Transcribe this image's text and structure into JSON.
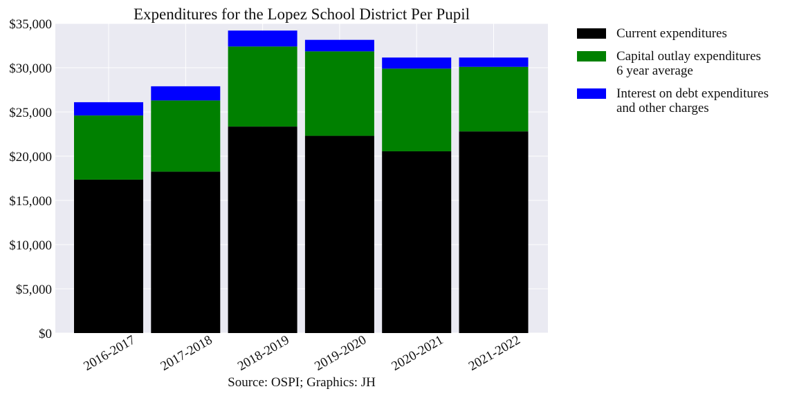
{
  "chart_data": {
    "type": "bar",
    "stacked": true,
    "title": "Expenditures for the Lopez School District Per Pupil",
    "xlabel": "",
    "ylabel": "",
    "categories": [
      "2016-2017",
      "2017-2018",
      "2018-2019",
      "2019-2020",
      "2020-2021",
      "2021-2022"
    ],
    "series": [
      {
        "name": "Current expenditures",
        "color": "#000000",
        "values": [
          17350,
          18250,
          23350,
          22300,
          20550,
          22800
        ]
      },
      {
        "name": "Capital outlay expenditures\n6 year average",
        "color": "#008000",
        "values": [
          7250,
          8050,
          9050,
          9550,
          9350,
          7300
        ]
      },
      {
        "name": "Interest on debt expenditures\nand other charges",
        "color": "#0000ff",
        "values": [
          1500,
          1600,
          1800,
          1300,
          1250,
          1050
        ]
      }
    ],
    "ylim": [
      0,
      35000
    ],
    "yticks": [
      0,
      5000,
      10000,
      15000,
      20000,
      25000,
      30000,
      35000
    ],
    "ytick_labels": [
      "$0",
      "$5,000",
      "$10,000",
      "$15,000",
      "$20,000",
      "$25,000",
      "$30,000",
      "$35,000"
    ],
    "grid": true,
    "legend_position": "outside-right",
    "background": "#eaeaf2",
    "source": "Source: OSPI; Graphics: JH"
  }
}
